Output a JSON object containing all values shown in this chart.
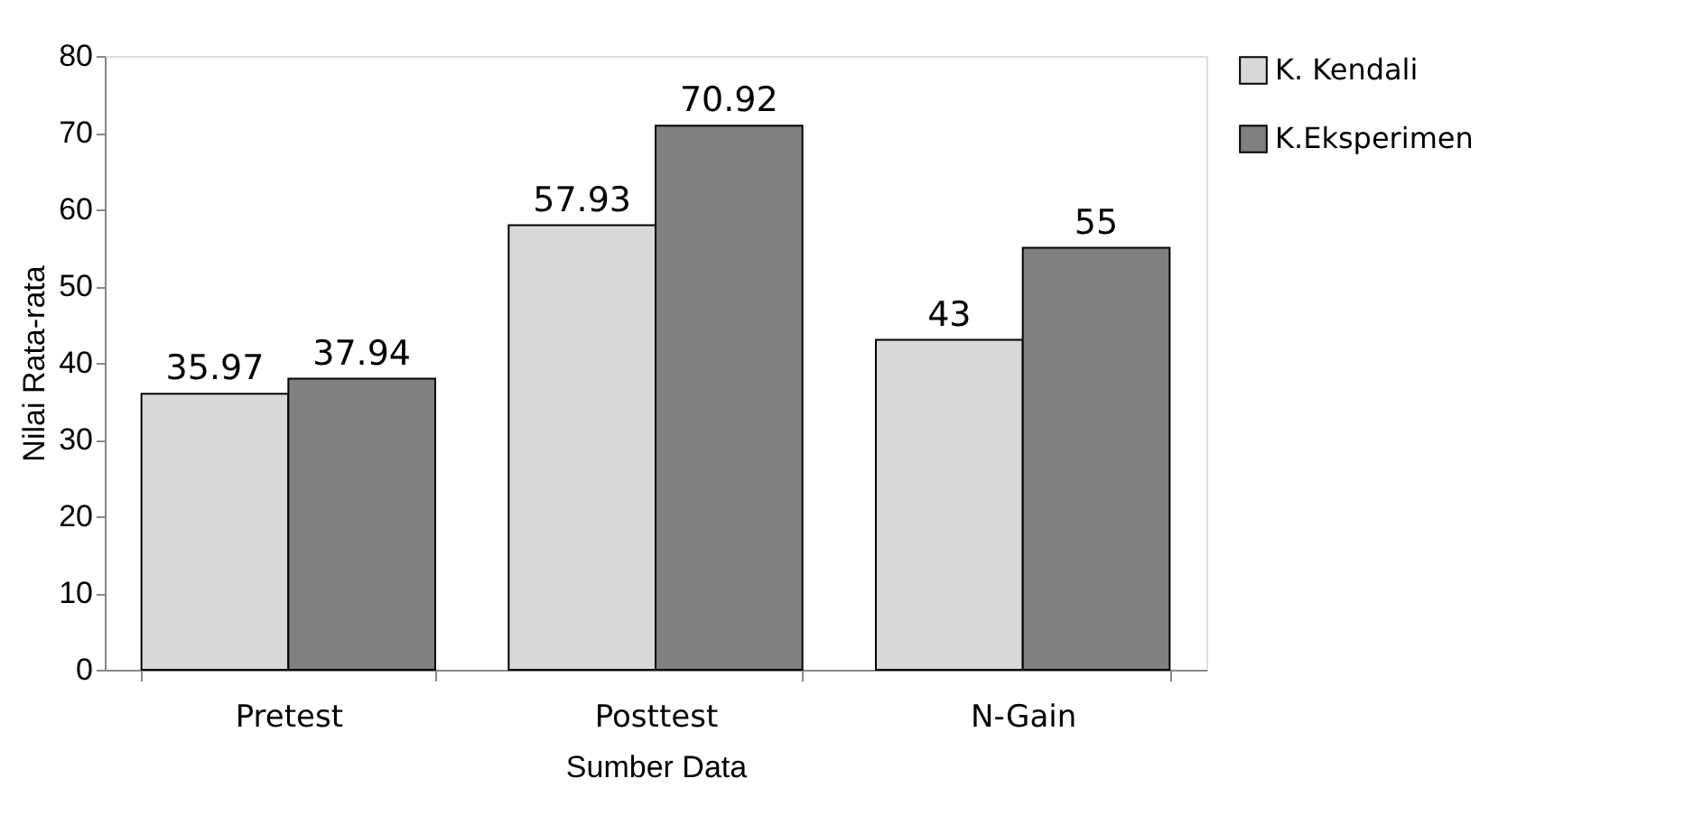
{
  "chart_data": {
    "type": "bar",
    "xlabel": "Sumber Data",
    "ylabel": "Nilai Rata-rata",
    "categories": [
      "Pretest",
      "Posttest",
      "N-Gain"
    ],
    "series": [
      {
        "name": "K. Kendali",
        "color": "#d9d9d9",
        "values": [
          35.97,
          57.93,
          43
        ]
      },
      {
        "name": "K.Eksperimen",
        "color": "#808080",
        "values": [
          37.94,
          70.92,
          55
        ]
      }
    ],
    "ylim": [
      0,
      80
    ],
    "yticks": [
      0,
      10,
      20,
      30,
      40,
      50,
      60,
      70,
      80
    ],
    "data_labels": true,
    "legend": "right",
    "grid": false
  }
}
